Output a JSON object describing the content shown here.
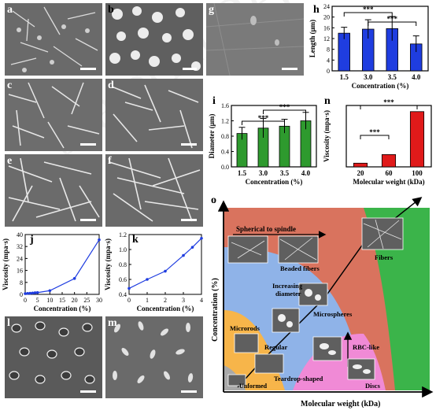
{
  "panels": {
    "a": "a",
    "b": "b",
    "c": "c",
    "d": "d",
    "e": "e",
    "f": "f",
    "g": "g",
    "h": "h",
    "i": "i",
    "j": "j",
    "k": "k",
    "l": "l",
    "m": "m",
    "n": "n",
    "o": "o"
  },
  "schematic": {
    "xlabel": "Molecular weight (kDa)",
    "ylabel": "Concentration (%)",
    "labels": {
      "spherical_to_spindle": "Spherical to spindle",
      "beaded_fibers": "Beaded fibers",
      "fibers": "Fibers",
      "increasing_diameter": "Increasing\ndiameter",
      "microspheres": "Microspheres",
      "microrods": "Microrods",
      "regular": "Regular",
      "rbc_like": "RBC-like",
      "teardrop": "Teardrop-shaped",
      "discs": "Discs",
      "unformed": "Unformed"
    },
    "colors": {
      "green": "#3bb44a",
      "red": "#d9735e",
      "blue": "#8fb3e8",
      "orange": "#f7b54a",
      "pink": "#f08ad6",
      "gray": "#a9a9a9"
    }
  },
  "chart_data": [
    {
      "id": "h",
      "type": "bar",
      "categories": [
        "1.5",
        "3.0",
        "3.5",
        "4.0"
      ],
      "values": [
        14,
        15.5,
        15.7,
        10
      ],
      "errors": [
        2.2,
        3.5,
        4.5,
        3.0
      ],
      "xlabel": "Concentration (%)",
      "ylabel": "Length (μm)",
      "ylim": [
        0,
        24
      ],
      "yticks": [
        "0",
        "4",
        "8",
        "12",
        "16",
        "20",
        "24"
      ],
      "color": "#1f3de0",
      "significance": [
        "***",
        "***"
      ]
    },
    {
      "id": "i",
      "type": "bar",
      "categories": [
        "1.5",
        "3.0",
        "3.5",
        "4.0"
      ],
      "values": [
        0.87,
        1.01,
        1.06,
        1.2
      ],
      "errors": [
        0.16,
        0.25,
        0.18,
        0.22
      ],
      "xlabel": "Concentration (%)",
      "ylabel": "Diameter (μm)",
      "ylim": [
        0,
        1.6
      ],
      "yticks": [
        "0.0",
        "0.4",
        "0.8",
        "1.2",
        "1.6"
      ],
      "color": "#2e9a2e",
      "significance": [
        "***",
        "***"
      ]
    },
    {
      "id": "n",
      "type": "bar",
      "categories": [
        "20",
        "60",
        "100"
      ],
      "values": [
        0.3,
        1.0,
        4.5
      ],
      "xlabel": "Molecular weight (kDa)",
      "ylabel": "Viscosity (mpa·s)",
      "ylim": [
        0,
        5
      ],
      "color": "#e01a1a",
      "significance": [
        "***",
        "***"
      ]
    },
    {
      "id": "j",
      "type": "line",
      "x": [
        0,
        1,
        2,
        3,
        4,
        5,
        10,
        20,
        30
      ],
      "y": [
        0.5,
        0.6,
        0.75,
        0.9,
        1.1,
        1.2,
        2.5,
        10.6,
        36.5
      ],
      "xlabel": "Concentration (%)",
      "ylabel": "Viscosity (mpa·s)",
      "xlim": [
        0,
        30
      ],
      "ylim": [
        0,
        40
      ],
      "xticks": [
        "0",
        "5",
        "10",
        "15",
        "20",
        "25",
        "30"
      ],
      "yticks": [
        "0",
        "8",
        "16",
        "24",
        "32",
        "40"
      ],
      "color": "#1f3de0"
    },
    {
      "id": "k",
      "type": "line",
      "x": [
        0,
        1,
        2,
        3,
        3.5,
        4
      ],
      "y": [
        0.48,
        0.6,
        0.71,
        0.92,
        1.03,
        1.15
      ],
      "xlabel": "Concentration (%)",
      "ylabel": "Viscosity (mpa·s)",
      "xlim": [
        0,
        4
      ],
      "ylim": [
        0.4,
        1.2
      ],
      "xticks": [
        "0",
        "1",
        "2",
        "3",
        "4"
      ],
      "yticks": [
        "0.4",
        "0.6",
        "0.8",
        "1.0",
        "1.2"
      ],
      "color": "#1f3de0"
    }
  ]
}
